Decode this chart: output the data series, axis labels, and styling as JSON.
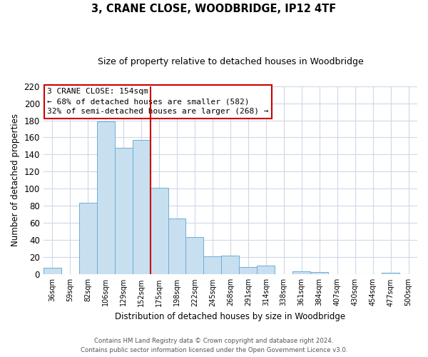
{
  "title": "3, CRANE CLOSE, WOODBRIDGE, IP12 4TF",
  "subtitle": "Size of property relative to detached houses in Woodbridge",
  "xlabel": "Distribution of detached houses by size in Woodbridge",
  "ylabel": "Number of detached properties",
  "bar_labels": [
    "36sqm",
    "59sqm",
    "82sqm",
    "106sqm",
    "129sqm",
    "152sqm",
    "175sqm",
    "198sqm",
    "222sqm",
    "245sqm",
    "268sqm",
    "291sqm",
    "314sqm",
    "338sqm",
    "361sqm",
    "384sqm",
    "407sqm",
    "430sqm",
    "454sqm",
    "477sqm",
    "500sqm"
  ],
  "bar_values": [
    8,
    0,
    84,
    179,
    148,
    157,
    101,
    65,
    44,
    21,
    22,
    9,
    10,
    0,
    4,
    3,
    0,
    0,
    0,
    2,
    0
  ],
  "bar_color": "#c8dff0",
  "bar_edge_color": "#6baed6",
  "vline_x_index": 5,
  "vline_color": "#cc0000",
  "ylim": [
    0,
    220
  ],
  "yticks": [
    0,
    20,
    40,
    60,
    80,
    100,
    120,
    140,
    160,
    180,
    200,
    220
  ],
  "annotation_title": "3 CRANE CLOSE: 154sqm",
  "annotation_line1": "← 68% of detached houses are smaller (582)",
  "annotation_line2": "32% of semi-detached houses are larger (268) →",
  "annotation_box_color": "#ffffff",
  "annotation_box_edge": "#cc0000",
  "footer_line1": "Contains HM Land Registry data © Crown copyright and database right 2024.",
  "footer_line2": "Contains public sector information licensed under the Open Government Licence v3.0.",
  "bg_color": "#ffffff",
  "grid_color": "#ccd9e8"
}
